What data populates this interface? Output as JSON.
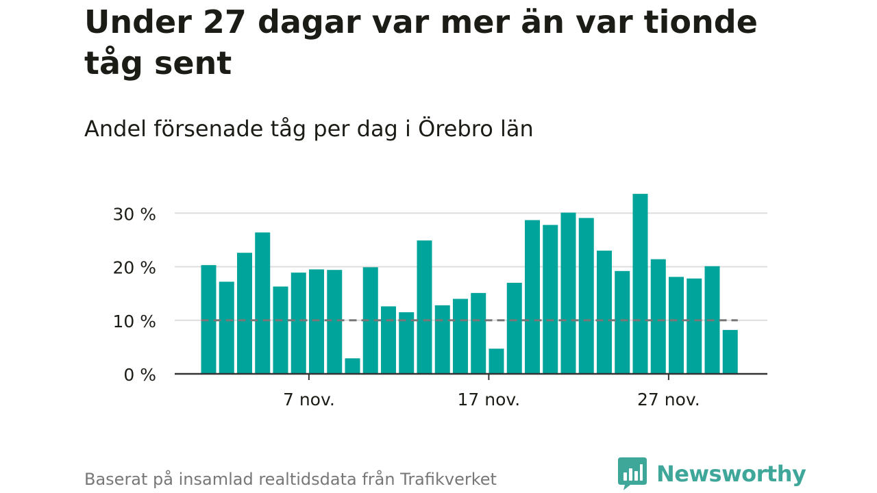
{
  "title": "Under 27 dagar var mer än var tionde tåg sent",
  "subtitle": "Andel försenade tåg per dag i Örebro län",
  "source": "Baserat på insamlad realtidsdata från Trafikverket",
  "brand": {
    "name": "Newsworthy",
    "icon": "newsworthy-logo-icon",
    "color": "#3fa69a"
  },
  "colors": {
    "bar": "#00a49a",
    "grid": "#dddddd",
    "axis": "#333333",
    "reference_line": "#777777",
    "text": "#1c1c16",
    "muted": "#777777"
  },
  "chart_data": {
    "type": "bar",
    "x": [
      "2023-11-01",
      "2023-11-02",
      "2023-11-03",
      "2023-11-04",
      "2023-11-05",
      "2023-11-06",
      "2023-11-07",
      "2023-11-08",
      "2023-11-09",
      "2023-11-10",
      "2023-11-11",
      "2023-11-12",
      "2023-11-13",
      "2023-11-14",
      "2023-11-15",
      "2023-11-16",
      "2023-11-17",
      "2023-11-18",
      "2023-11-19",
      "2023-11-20",
      "2023-11-21",
      "2023-11-22",
      "2023-11-23",
      "2023-11-24",
      "2023-11-25",
      "2023-11-26",
      "2023-11-27",
      "2023-11-28",
      "2023-11-29",
      "2023-11-30"
    ],
    "values": [
      20.3,
      17.2,
      22.6,
      26.4,
      16.3,
      18.9,
      19.5,
      19.4,
      2.9,
      19.9,
      12.6,
      11.5,
      24.9,
      12.8,
      14.0,
      15.1,
      4.7,
      17.0,
      28.7,
      27.8,
      30.1,
      29.1,
      23.0,
      19.2,
      33.6,
      21.4,
      18.1,
      17.8,
      20.1,
      8.2
    ],
    "ylim": [
      0,
      34
    ],
    "yticks": [
      {
        "value": 0,
        "label": "0 %"
      },
      {
        "value": 10,
        "label": "10 %"
      },
      {
        "value": 20,
        "label": "20 %"
      },
      {
        "value": 30,
        "label": "30 %"
      }
    ],
    "xticks": [
      {
        "value": "2023-11-07",
        "label": "7 nov."
      },
      {
        "value": "2023-11-17",
        "label": "17 nov."
      },
      {
        "value": "2023-11-27",
        "label": "27 nov."
      }
    ],
    "reference_line": {
      "value": 10,
      "style": "dashed"
    },
    "grid": true,
    "legend": "none",
    "xlabel": "",
    "ylabel": ""
  }
}
